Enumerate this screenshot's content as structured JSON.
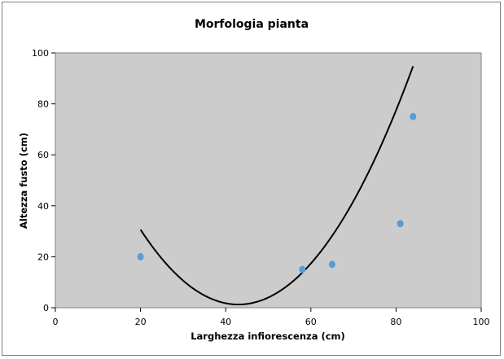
{
  "chart_data": {
    "type": "scatter",
    "title": "Morfologia pianta",
    "xlabel": "Larghezza infiorescenza (cm)",
    "ylabel": "Altezza fusto (cm)",
    "xlim": [
      0,
      100
    ],
    "ylim": [
      0,
      100
    ],
    "xticks": [
      0,
      20,
      40,
      60,
      80,
      100
    ],
    "yticks": [
      0,
      20,
      40,
      60,
      80,
      100
    ],
    "grid": false,
    "plot_background": "#cccccc",
    "series": [
      {
        "marker_color": "#5b9bd5",
        "points": [
          {
            "x": 20,
            "y": 20
          },
          {
            "x": 58,
            "y": 15
          },
          {
            "x": 65,
            "y": 17
          },
          {
            "x": 81,
            "y": 33
          },
          {
            "x": 84,
            "y": 75
          }
        ]
      }
    ],
    "trendline": {
      "type": "polynomial",
      "order": 2,
      "color": "#000000",
      "x_range": [
        20,
        84
      ],
      "coefficients": [
        104.0,
        -4.78,
        0.0556
      ]
    }
  }
}
